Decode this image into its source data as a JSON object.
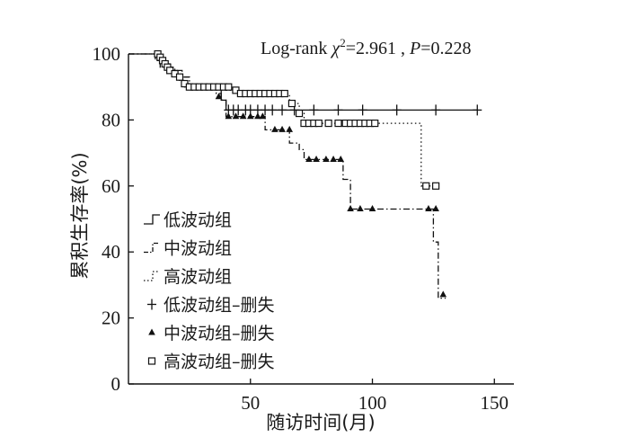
{
  "chart_data": {
    "type": "line",
    "subtype": "kaplan-meier",
    "title": "",
    "xlabel": "随访时间(月)",
    "ylabel": "累积生存率(%)",
    "xlim": [
      0,
      158
    ],
    "ylim": [
      0,
      100
    ],
    "xticks": [
      50,
      100,
      150
    ],
    "yticks": [
      0,
      20,
      40,
      60,
      80,
      100
    ],
    "grid": false,
    "legend_position": "bottom-left",
    "annotation": {
      "prefix": "Log-rank ",
      "chi": "χ",
      "sup": "2",
      "stat": "=2.961 , ",
      "p": "P",
      "p_value": "=0.228"
    },
    "series": [
      {
        "name": "低波动组",
        "dash": "solid",
        "points": [
          [
            0,
            100
          ],
          [
            12,
            100
          ],
          [
            12,
            99
          ],
          [
            13,
            99
          ],
          [
            13,
            98
          ],
          [
            15,
            98
          ],
          [
            15,
            97
          ],
          [
            17,
            97
          ],
          [
            17,
            96
          ],
          [
            18,
            96
          ],
          [
            18,
            95
          ],
          [
            20,
            95
          ],
          [
            20,
            93
          ],
          [
            22,
            93
          ],
          [
            22,
            91
          ],
          [
            25,
            91
          ],
          [
            25,
            90
          ],
          [
            38,
            90
          ],
          [
            38,
            86
          ],
          [
            40,
            86
          ],
          [
            40,
            83
          ],
          [
            143,
            83
          ]
        ],
        "censored": [
          [
            41,
            83
          ],
          [
            43,
            83
          ],
          [
            45,
            83
          ],
          [
            48,
            83
          ],
          [
            50,
            83
          ],
          [
            53,
            83
          ],
          [
            56,
            83
          ],
          [
            59,
            83
          ],
          [
            63,
            83
          ],
          [
            68,
            83
          ],
          [
            76,
            83
          ],
          [
            86,
            83
          ],
          [
            96,
            83
          ],
          [
            110,
            83
          ],
          [
            126,
            83
          ],
          [
            143,
            83
          ]
        ]
      },
      {
        "name": "中波动组",
        "dash": "dashdot",
        "points": [
          [
            0,
            100
          ],
          [
            11,
            100
          ],
          [
            11,
            98
          ],
          [
            13,
            98
          ],
          [
            13,
            96
          ],
          [
            19,
            96
          ],
          [
            19,
            95
          ],
          [
            22,
            95
          ],
          [
            22,
            93
          ],
          [
            25,
            93
          ],
          [
            25,
            90
          ],
          [
            36,
            90
          ],
          [
            36,
            88
          ],
          [
            38,
            88
          ],
          [
            38,
            86
          ],
          [
            40,
            86
          ],
          [
            40,
            81
          ],
          [
            56,
            81
          ],
          [
            56,
            77
          ],
          [
            66,
            77
          ],
          [
            66,
            73
          ],
          [
            70,
            73
          ],
          [
            70,
            71
          ],
          [
            72,
            71
          ],
          [
            72,
            68
          ],
          [
            88,
            68
          ],
          [
            88,
            62
          ],
          [
            91,
            62
          ],
          [
            91,
            53
          ],
          [
            125,
            53
          ],
          [
            125,
            43
          ],
          [
            127,
            43
          ],
          [
            127,
            26
          ],
          [
            130,
            26
          ]
        ],
        "censored": [
          [
            37,
            87
          ],
          [
            41,
            81
          ],
          [
            44,
            81
          ],
          [
            47,
            81
          ],
          [
            50,
            81
          ],
          [
            53,
            81
          ],
          [
            55,
            81
          ],
          [
            60,
            77
          ],
          [
            63,
            77
          ],
          [
            66,
            77
          ],
          [
            74,
            68
          ],
          [
            77,
            68
          ],
          [
            81,
            68
          ],
          [
            84,
            68
          ],
          [
            87,
            68
          ],
          [
            91,
            53
          ],
          [
            95,
            53
          ],
          [
            100,
            53
          ],
          [
            123,
            53
          ],
          [
            126,
            53
          ],
          [
            129,
            27
          ]
        ]
      },
      {
        "name": "高波动组",
        "dash": "dotted",
        "points": [
          [
            0,
            100
          ],
          [
            12,
            100
          ],
          [
            12,
            98
          ],
          [
            14,
            98
          ],
          [
            14,
            97
          ],
          [
            16,
            97
          ],
          [
            16,
            96
          ],
          [
            18,
            96
          ],
          [
            18,
            94
          ],
          [
            20,
            94
          ],
          [
            20,
            92
          ],
          [
            23,
            92
          ],
          [
            23,
            90
          ],
          [
            40,
            90
          ],
          [
            40,
            89
          ],
          [
            46,
            89
          ],
          [
            46,
            88
          ],
          [
            66,
            88
          ],
          [
            66,
            85
          ],
          [
            70,
            85
          ],
          [
            70,
            82
          ],
          [
            72,
            82
          ],
          [
            72,
            79
          ],
          [
            120,
            79
          ],
          [
            120,
            60
          ],
          [
            126,
            60
          ]
        ],
        "censored": [
          [
            12,
            100
          ],
          [
            13,
            99
          ],
          [
            14,
            98
          ],
          [
            15,
            97
          ],
          [
            16,
            96
          ],
          [
            17,
            95
          ],
          [
            19,
            94
          ],
          [
            21,
            93
          ],
          [
            23,
            91
          ],
          [
            25,
            90
          ],
          [
            27,
            90
          ],
          [
            29,
            90
          ],
          [
            31,
            90
          ],
          [
            33,
            90
          ],
          [
            35,
            90
          ],
          [
            37,
            90
          ],
          [
            39,
            90
          ],
          [
            41,
            90
          ],
          [
            44,
            89
          ],
          [
            46,
            88
          ],
          [
            48,
            88
          ],
          [
            50,
            88
          ],
          [
            52,
            88
          ],
          [
            54,
            88
          ],
          [
            56,
            88
          ],
          [
            58,
            88
          ],
          [
            60,
            88
          ],
          [
            62,
            88
          ],
          [
            64,
            88
          ],
          [
            67,
            85
          ],
          [
            70,
            82
          ],
          [
            72,
            79
          ],
          [
            74,
            79
          ],
          [
            76,
            79
          ],
          [
            78,
            79
          ],
          [
            82,
            79
          ],
          [
            86,
            79
          ],
          [
            89,
            79
          ],
          [
            91,
            79
          ],
          [
            93,
            79
          ],
          [
            95,
            79
          ],
          [
            97,
            79
          ],
          [
            99,
            79
          ],
          [
            101,
            79
          ],
          [
            122,
            60
          ],
          [
            126,
            60
          ]
        ]
      }
    ],
    "legend": [
      {
        "label": "低波动组",
        "symbol": "step-solid"
      },
      {
        "label": "中波动组",
        "symbol": "step-dashdot"
      },
      {
        "label": "高波动组",
        "symbol": "step-dotted"
      },
      {
        "label": "低波动组–删失",
        "symbol": "plus"
      },
      {
        "label": "中波动组–删失",
        "symbol": "triangle"
      },
      {
        "label": "高波动组–删失",
        "symbol": "square"
      }
    ]
  }
}
